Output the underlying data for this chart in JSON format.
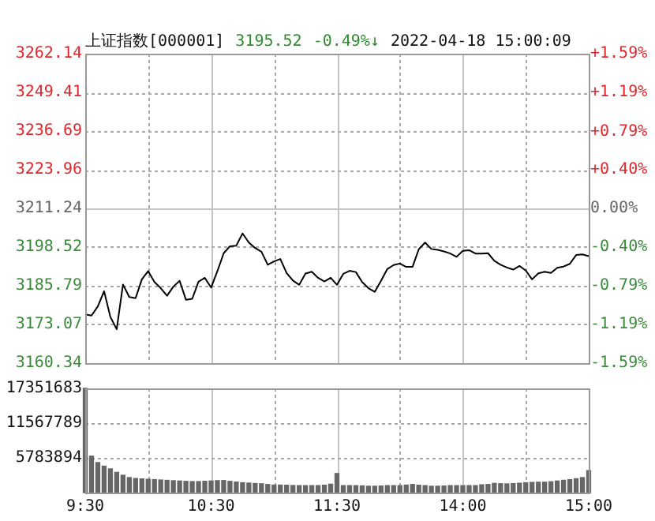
{
  "chart_data": [
    {
      "type": "line",
      "title": "上证指数[000001]",
      "annotations": [
        "3195.52",
        "-0.49%↓",
        "2022-04-18 15:00:09"
      ],
      "categories": [
        null,
        null,
        null,
        null,
        null,
        null,
        null,
        null,
        null,
        null,
        null,
        null,
        null,
        null,
        null,
        null,
        null,
        null,
        null,
        null,
        null,
        null,
        null,
        null,
        null,
        null,
        null,
        null,
        null,
        null,
        null,
        null,
        null,
        null,
        null,
        null,
        null,
        null,
        null,
        null,
        null,
        null,
        null,
        null,
        null,
        null,
        null,
        null,
        null,
        null,
        null,
        null,
        null,
        null,
        null,
        null,
        null,
        null,
        null,
        null,
        null,
        null,
        null,
        null,
        null,
        null,
        null,
        null,
        null,
        null,
        null,
        null,
        null,
        null,
        null,
        null,
        null,
        null,
        null,
        null,
        null
      ],
      "series": [
        {
          "color": "#000000",
          "values": [
            3176.4,
            3176.0,
            3179,
            3184,
            3175.5,
            3171.5,
            3186.2,
            3182.1,
            3181.7,
            3187.9,
            3190.6,
            3187.0,
            3185,
            3182.5,
            3185.5,
            3187.4,
            3181.2,
            3181.5,
            3187.1,
            3188.4,
            3185.2,
            3190.6,
            3196.5,
            3198.8,
            3199.0,
            3203.0,
            3200,
            3198.2,
            3197,
            3192.7,
            3193.8,
            3194.6,
            3190,
            3187.5,
            3186.1,
            3189.8,
            3190.4,
            3188.4,
            3187.2,
            3188.4,
            3186.1,
            3189.7,
            3190.7,
            3190.3,
            3187.0,
            3185,
            3183.8,
            3187.4,
            3191.3,
            3192.6,
            3193.1,
            3192.0,
            3192.0,
            3197.8,
            3200,
            3197.9,
            3197.6,
            3197.1,
            3196.4,
            3195.3,
            3197.3,
            3197.5,
            3196.4,
            3196.4,
            3196.5,
            3194,
            3192.7,
            3191.8,
            3191.1,
            3192.3,
            3190.8,
            3187.9,
            3189.9,
            3190.4,
            3190.0,
            3191.7,
            3192.1,
            3193.0,
            3195.9,
            3196.1,
            3195.52
          ]
        }
      ],
      "ylim": [
        3160.34,
        3262.14
      ],
      "yticks": [
        3262.14,
        3249.41,
        3236.69,
        3223.96,
        3211.24,
        3198.52,
        3185.79,
        3173.07,
        3160.34
      ],
      "y2lim": [
        -1.59,
        1.59
      ],
      "y2ticks": [
        {
          "value": 1.59,
          "label": "+1.59%"
        },
        {
          "value": 1.19,
          "label": "+1.19%"
        },
        {
          "value": 0.79,
          "label": "+0.79%"
        },
        {
          "value": 0.4,
          "label": "+0.40%"
        },
        {
          "value": 0,
          "label": "0.00%"
        },
        {
          "value": -0.4,
          "label": "-0.40%"
        },
        {
          "value": -0.79,
          "label": "-0.79%"
        },
        {
          "value": -1.19,
          "label": "-1.19%"
        },
        {
          "value": -1.59,
          "label": "-1.59%"
        }
      ],
      "grid": true,
      "tick_labels": "y"
    },
    {
      "type": "bar",
      "color": "#666666",
      "categories": [
        "9:30",
        null,
        null,
        null,
        null,
        null,
        null,
        null,
        null,
        null,
        null,
        null,
        null,
        null,
        null,
        null,
        null,
        null,
        null,
        null,
        "10:30",
        null,
        null,
        null,
        null,
        null,
        null,
        null,
        null,
        null,
        null,
        null,
        null,
        null,
        null,
        null,
        null,
        null,
        null,
        null,
        "11:30",
        null,
        null,
        null,
        null,
        null,
        null,
        null,
        null,
        null,
        null,
        null,
        null,
        null,
        null,
        null,
        null,
        null,
        null,
        null,
        "14:00",
        null,
        null,
        null,
        null,
        null,
        null,
        null,
        null,
        null,
        null,
        null,
        null,
        null,
        null,
        null,
        null,
        null,
        null,
        null,
        "15:00"
      ],
      "values": [
        17351683,
        6070000,
        5000000,
        4400000,
        3950000,
        3370000,
        2890000,
        2500000,
        2350000,
        2280000,
        2220000,
        2160000,
        2100000,
        2040000,
        1980000,
        1930000,
        1870000,
        1830000,
        1830000,
        1880000,
        1930000,
        1990000,
        2000000,
        1870000,
        1750000,
        1640000,
        1580000,
        1520000,
        1470000,
        1350000,
        1250000,
        1250000,
        1230000,
        1180000,
        1160000,
        1160000,
        1160000,
        1160000,
        1230000,
        1400000,
        3180000,
        1160000,
        1160000,
        1160000,
        1120000,
        1060000,
        1060000,
        1100000,
        1160000,
        1160000,
        1160000,
        1250000,
        1350000,
        1230000,
        1160000,
        1060000,
        1060000,
        1100000,
        1160000,
        1160000,
        1160000,
        1160000,
        1160000,
        1300000,
        1350000,
        1540000,
        1480000,
        1450000,
        1500000,
        1560000,
        1640000,
        1700000,
        1730000,
        1730000,
        1800000,
        1930000,
        2050000,
        2150000,
        2310000,
        2500000,
        3660000
      ],
      "ylim": [
        0,
        17351683
      ],
      "yticks": [
        17351683,
        11567789,
        5783894
      ],
      "grid": true
    }
  ]
}
